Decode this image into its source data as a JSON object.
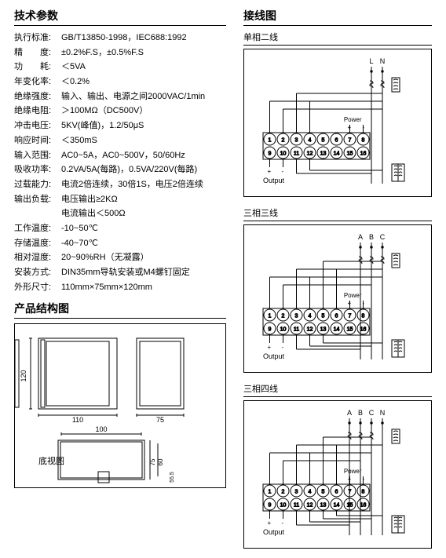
{
  "specs": {
    "title": "技术参数",
    "rows": [
      {
        "label": "执行标准:",
        "value": "GB/T13850-1998，IEC688:1992"
      },
      {
        "label": "精　　度:",
        "value": "±0.2%F.S，±0.5%F.S"
      },
      {
        "label": "功　　耗:",
        "value": "＜5VA"
      },
      {
        "label": "年变化率:",
        "value": "＜0.2%"
      },
      {
        "label": "绝缘强度:",
        "value": "输入、输出、电源之间2000VAC/1min"
      },
      {
        "label": "绝缘电阻:",
        "value": "＞100MΩ（DC500V）"
      },
      {
        "label": "冲击电压:",
        "value": "5KV(峰值)，1.2/50μS"
      },
      {
        "label": "响应时间:",
        "value": "＜350mS"
      },
      {
        "label": "输入范围:",
        "value": "AC0~5A，AC0~500V，50/60Hz"
      },
      {
        "label": "吸收功率:",
        "value": "0.2VA/5A(每路)，0.5VA/220V(每路)"
      },
      {
        "label": "过载能力:",
        "value": "电流2倍连续，30倍1S，电压2倍连续"
      },
      {
        "label": "输出负载:",
        "value": "电压输出≥2KΩ"
      },
      {
        "label": "",
        "value": "电流输出＜500Ω"
      },
      {
        "label": "工作温度:",
        "value": "-10~50℃"
      },
      {
        "label": "存储温度:",
        "value": "-40~70℃"
      },
      {
        "label": "相对湿度:",
        "value": "20~90%RH（无凝露）"
      },
      {
        "label": "安装方式:",
        "value": "DIN35mm导轨安装或M4螺钉固定"
      },
      {
        "label": "外形尺寸:",
        "value": "110mm×75mm×120mm"
      }
    ]
  },
  "struct": {
    "title": "产品结构图",
    "dim_front_w": "110",
    "dim_front_h": "120",
    "dim_side_w": "75",
    "dim_bottom_w": "100",
    "dim_bottom_h1": "75",
    "dim_bottom_h2": "60",
    "dim_r": "55.5",
    "bottom_label": "底视图"
  },
  "wiring": {
    "title": "接线图",
    "diagrams": [
      {
        "caption": "单相二线",
        "top_labels": [
          "L",
          "N"
        ]
      },
      {
        "caption": "三相三线",
        "top_labels": [
          "A",
          "B",
          "C"
        ]
      },
      {
        "caption": "三相四线",
        "top_labels": [
          "A",
          "B",
          "C",
          "N"
        ]
      }
    ],
    "power_label": "Power",
    "output_label": "Output",
    "terminals_top": [
      "1",
      "2",
      "3",
      "4",
      "5",
      "6",
      "7",
      "8"
    ],
    "terminals_bottom": [
      "9",
      "10",
      "11",
      "12",
      "13",
      "14",
      "15",
      "16"
    ]
  },
  "colors": {
    "line": "#000000",
    "bg": "#ffffff"
  }
}
